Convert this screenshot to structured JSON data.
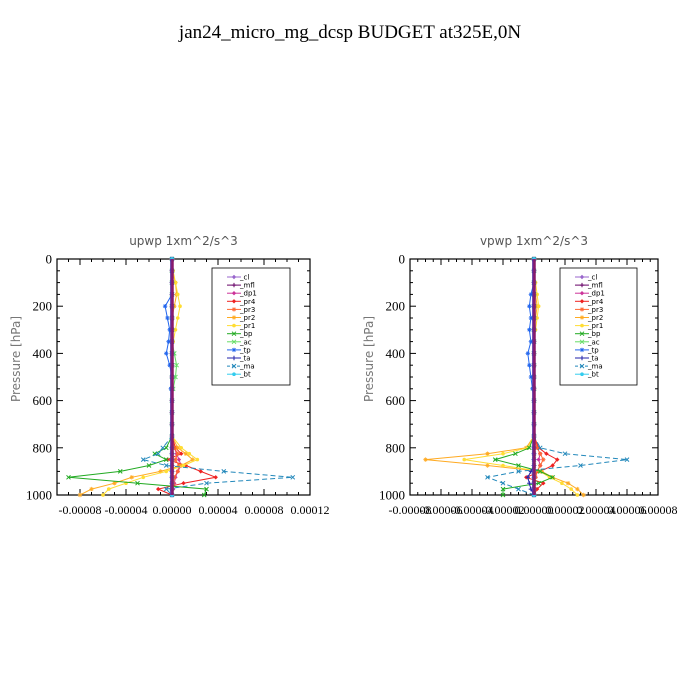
{
  "figure_title": "jan24_micro_mg_dcsp  BUDGET at325E,0N",
  "chart_data": [
    {
      "type": "line",
      "title": "upwp  1xm^2/s^3",
      "ylabel": "Pressure [hPa]",
      "xlabel": "",
      "ylim": [
        1000,
        0
      ],
      "y_ticks": [
        0,
        200,
        400,
        600,
        800,
        1000
      ],
      "xlim": [
        -0.0001,
        0.00012
      ],
      "x_ticks": [
        -8e-05,
        -4e-05,
        0.0,
        4e-05,
        8e-05,
        0.00012
      ],
      "x_tick_labels": [
        "-0.00008",
        "-0.00004",
        "0.00000",
        "0.00004",
        "0.00008",
        "0.00012"
      ],
      "legend_position": "top-right",
      "y": [
        0,
        50,
        100,
        150,
        200,
        250,
        300,
        350,
        400,
        450,
        500,
        550,
        600,
        650,
        700,
        750,
        800,
        825,
        850,
        875,
        900,
        925,
        950,
        975,
        1000
      ],
      "series": [
        {
          "name": "_cl",
          "color": "#9966cc",
          "values": [
            0,
            0,
            0,
            0,
            0,
            0,
            0,
            0,
            0,
            0,
            0,
            0,
            0,
            0,
            0,
            0,
            0,
            0,
            0,
            0,
            0,
            0,
            0,
            0,
            0
          ]
        },
        {
          "name": "_mfl",
          "color": "#660066",
          "values": [
            0,
            0,
            0,
            0,
            0,
            0,
            0,
            0,
            0,
            0,
            0,
            0,
            0,
            0,
            0,
            0,
            0,
            0,
            0,
            0,
            0,
            0,
            0,
            0,
            0
          ]
        },
        {
          "name": "_dp1",
          "color": "#cc3399",
          "values": [
            0,
            0,
            0,
            0,
            0,
            0,
            0,
            0,
            0,
            0,
            0,
            0,
            0,
            0,
            0,
            0,
            2e-06,
            4e-06,
            6e-06,
            8e-06,
            5e-06,
            3e-06,
            2e-06,
            1e-06,
            0
          ]
        },
        {
          "name": "_pr4",
          "color": "#ee2222",
          "values": [
            0,
            0,
            0,
            0,
            0,
            0,
            0,
            0,
            0,
            0,
            0,
            0,
            0,
            0,
            0,
            0,
            3e-06,
            8e-06,
            -4e-06,
            1.2e-05,
            2.5e-05,
            3.8e-05,
            1e-05,
            -1.2e-05,
            0
          ]
        },
        {
          "name": "_pr3",
          "color": "#ff6633",
          "values": [
            0,
            0,
            0,
            0,
            0,
            0,
            0,
            0,
            0,
            0,
            0,
            0,
            0,
            0,
            0,
            0,
            2e-06,
            5e-06,
            3e-06,
            6e-06,
            5e-06,
            2e-06,
            1e-06,
            0,
            0
          ]
        },
        {
          "name": "_pr2",
          "color": "#ffaa22",
          "values": [
            0,
            0,
            3e-06,
            4e-06,
            2e-06,
            0,
            0,
            0,
            0,
            0,
            0,
            0,
            0,
            0,
            0,
            0,
            5e-06,
            1.2e-05,
            1.8e-05,
            8e-06,
            -1e-05,
            -3.5e-05,
            -5e-05,
            -7e-05,
            -8e-05
          ]
        },
        {
          "name": "_pr1",
          "color": "#ffdd33",
          "values": [
            0,
            1e-06,
            3e-06,
            5e-06,
            7e-06,
            5e-06,
            3e-06,
            1e-06,
            0,
            0,
            0,
            0,
            0,
            0,
            0,
            0,
            8e-06,
            1.5e-05,
            2.2e-05,
            1e-05,
            -5e-06,
            -2.5e-05,
            -4e-05,
            -5.5e-05,
            -6e-05
          ]
        },
        {
          "name": "_bp",
          "color": "#22aa22",
          "values": [
            0,
            0,
            0,
            0,
            0,
            0,
            0,
            0,
            0,
            0,
            0,
            0,
            0,
            0,
            0,
            0,
            -5e-06,
            -1.5e-05,
            -5e-06,
            -2e-05,
            -4.5e-05,
            -9e-05,
            -3e-05,
            3e-05,
            2.8e-05
          ]
        },
        {
          "name": "_ac",
          "color": "#66dd66",
          "values": [
            0,
            0,
            0,
            0,
            0,
            0,
            0,
            0,
            2e-06,
            4e-06,
            3e-06,
            1e-06,
            0,
            0,
            0,
            0,
            0,
            0,
            0,
            0,
            0,
            0,
            0,
            0,
            0
          ]
        },
        {
          "name": "_tp",
          "color": "#2266ee",
          "values": [
            0,
            0,
            0,
            0,
            -6e-06,
            -4e-06,
            -2e-06,
            -3e-06,
            -5e-06,
            -2e-06,
            0,
            -1e-06,
            0,
            0,
            0,
            0,
            0,
            0,
            0,
            0,
            0,
            0,
            0,
            0,
            0
          ]
        },
        {
          "name": "_ta",
          "color": "#2222aa",
          "values": [
            0,
            0,
            0,
            0,
            0,
            0,
            0,
            0,
            0,
            0,
            0,
            0,
            0,
            0,
            0,
            0,
            0,
            0,
            0,
            0,
            0,
            0,
            0,
            0,
            0
          ]
        },
        {
          "name": "_ma",
          "color": "#2288bb",
          "values": [
            0,
            0,
            0,
            0,
            0,
            0,
            0,
            0,
            0,
            0,
            0,
            0,
            0,
            0,
            0,
            0,
            -8e-06,
            -1.2e-05,
            -2.5e-05,
            -5e-06,
            4.5e-05,
            0.000105,
            3e-05,
            -5e-06,
            0
          ]
        },
        {
          "name": "_bt",
          "color": "#33ccee",
          "values": [
            0,
            0,
            0,
            0,
            0,
            0,
            0,
            0,
            0,
            0,
            0,
            0,
            0,
            0,
            0,
            0,
            0,
            0,
            0,
            0,
            0,
            0,
            0,
            0,
            0
          ]
        }
      ]
    },
    {
      "type": "line",
      "title": "vpwp  1xm^2/s^3",
      "ylabel": "Pressure [hPa]",
      "xlabel": "",
      "ylim": [
        1000,
        0
      ],
      "y_ticks": [
        0,
        200,
        400,
        600,
        800,
        1000
      ],
      "xlim": [
        -8e-05,
        8e-05
      ],
      "x_ticks": [
        -8e-05,
        -6e-05,
        -4e-05,
        -2e-05,
        0.0,
        2e-05,
        4e-05,
        6e-05,
        8e-05
      ],
      "x_tick_labels": [
        "-0.00008",
        "-0.00006",
        "-0.00004",
        "-0.00002",
        "0.00000",
        "0.00002",
        "0.00004",
        "0.00006",
        "0.00008"
      ],
      "legend_position": "top-right",
      "y": [
        0,
        50,
        100,
        150,
        200,
        250,
        300,
        350,
        400,
        450,
        500,
        550,
        600,
        650,
        700,
        750,
        800,
        825,
        850,
        875,
        900,
        925,
        950,
        975,
        1000
      ],
      "series": [
        {
          "name": "_cl",
          "color": "#9966cc",
          "values": [
            0,
            0,
            0,
            0,
            0,
            0,
            0,
            0,
            0,
            0,
            0,
            0,
            0,
            0,
            0,
            0,
            0,
            0,
            0,
            0,
            0,
            0,
            0,
            0,
            0
          ]
        },
        {
          "name": "_mfl",
          "color": "#660066",
          "values": [
            0,
            0,
            0,
            0,
            0,
            0,
            0,
            0,
            0,
            0,
            0,
            0,
            0,
            0,
            0,
            0,
            0,
            0,
            0,
            0,
            0,
            0,
            0,
            0,
            0
          ]
        },
        {
          "name": "_dp1",
          "color": "#cc3399",
          "values": [
            0,
            0,
            0,
            0,
            0,
            0,
            0,
            0,
            0,
            0,
            0,
            0,
            0,
            0,
            0,
            0,
            2e-06,
            4e-06,
            3e-06,
            4e-06,
            2e-06,
            1e-06,
            0,
            0,
            0
          ]
        },
        {
          "name": "_pr4",
          "color": "#ee2222",
          "values": [
            0,
            0,
            0,
            0,
            0,
            0,
            0,
            0,
            0,
            0,
            0,
            0,
            0,
            0,
            0,
            0,
            3e-06,
            8e-06,
            1.5e-05,
            1.2e-05,
            4e-06,
            -5e-06,
            6e-06,
            2e-06,
            0
          ]
        },
        {
          "name": "_pr3",
          "color": "#ff6633",
          "values": [
            0,
            0,
            0,
            0,
            0,
            0,
            0,
            0,
            0,
            0,
            0,
            0,
            0,
            0,
            0,
            0,
            2e-06,
            4e-06,
            6e-06,
            4e-06,
            2e-06,
            1e-06,
            0,
            0,
            0
          ]
        },
        {
          "name": "_pr2",
          "color": "#ffaa22",
          "values": [
            0,
            0,
            0,
            1e-06,
            2e-06,
            1e-06,
            0,
            0,
            0,
            0,
            0,
            0,
            0,
            0,
            0,
            0,
            -5e-06,
            -3e-05,
            -7e-05,
            -3e-05,
            5e-06,
            1.2e-05,
            2.2e-05,
            2.8e-05,
            3.2e-05
          ]
        },
        {
          "name": "_pr1",
          "color": "#ffdd33",
          "values": [
            0,
            0,
            1e-06,
            2e-06,
            3e-06,
            2e-06,
            1e-06,
            0,
            0,
            0,
            0,
            0,
            0,
            0,
            0,
            0,
            -4e-06,
            -2e-05,
            -4.5e-05,
            -2e-05,
            4e-06,
            1e-05,
            1.8e-05,
            2.4e-05,
            2.8e-05
          ]
        },
        {
          "name": "_bp",
          "color": "#22aa22",
          "values": [
            0,
            0,
            0,
            0,
            0,
            0,
            0,
            0,
            0,
            0,
            0,
            0,
            0,
            0,
            0,
            0,
            -3e-06,
            -1.2e-05,
            -2.5e-05,
            -1e-05,
            4e-06,
            1.2e-05,
            3e-06,
            -2e-05,
            -2e-05
          ]
        },
        {
          "name": "_ac",
          "color": "#66dd66",
          "values": [
            0,
            0,
            0,
            0,
            0,
            0,
            0,
            0,
            0,
            0,
            0,
            0,
            0,
            0,
            0,
            0,
            0,
            0,
            0,
            0,
            0,
            0,
            0,
            0,
            0
          ]
        },
        {
          "name": "_tp",
          "color": "#2266ee",
          "values": [
            0,
            0,
            0,
            -2e-06,
            -3e-06,
            -2e-06,
            -3e-06,
            -2e-06,
            -4e-06,
            -3e-06,
            -2e-06,
            -1e-06,
            0,
            0,
            0,
            0,
            0,
            0,
            0,
            0,
            0,
            0,
            0,
            0,
            0
          ]
        },
        {
          "name": "_ta",
          "color": "#2222aa",
          "values": [
            0,
            0,
            0,
            0,
            0,
            0,
            0,
            0,
            0,
            0,
            0,
            0,
            0,
            0,
            0,
            0,
            0,
            0,
            0,
            0,
            -2e-06,
            -4e-06,
            -3e-06,
            -2e-06,
            0
          ]
        },
        {
          "name": "_ma",
          "color": "#2288bb",
          "values": [
            0,
            0,
            0,
            0,
            0,
            0,
            0,
            0,
            0,
            0,
            0,
            0,
            0,
            0,
            0,
            0,
            4e-06,
            2e-05,
            6e-05,
            3e-05,
            -1e-05,
            -3e-05,
            -2e-05,
            -1e-05,
            0
          ]
        },
        {
          "name": "_bt",
          "color": "#33ccee",
          "values": [
            0,
            0,
            0,
            0,
            0,
            0,
            0,
            0,
            0,
            0,
            0,
            0,
            0,
            0,
            0,
            0,
            0,
            0,
            0,
            0,
            0,
            0,
            0,
            0,
            0
          ]
        }
      ]
    }
  ]
}
